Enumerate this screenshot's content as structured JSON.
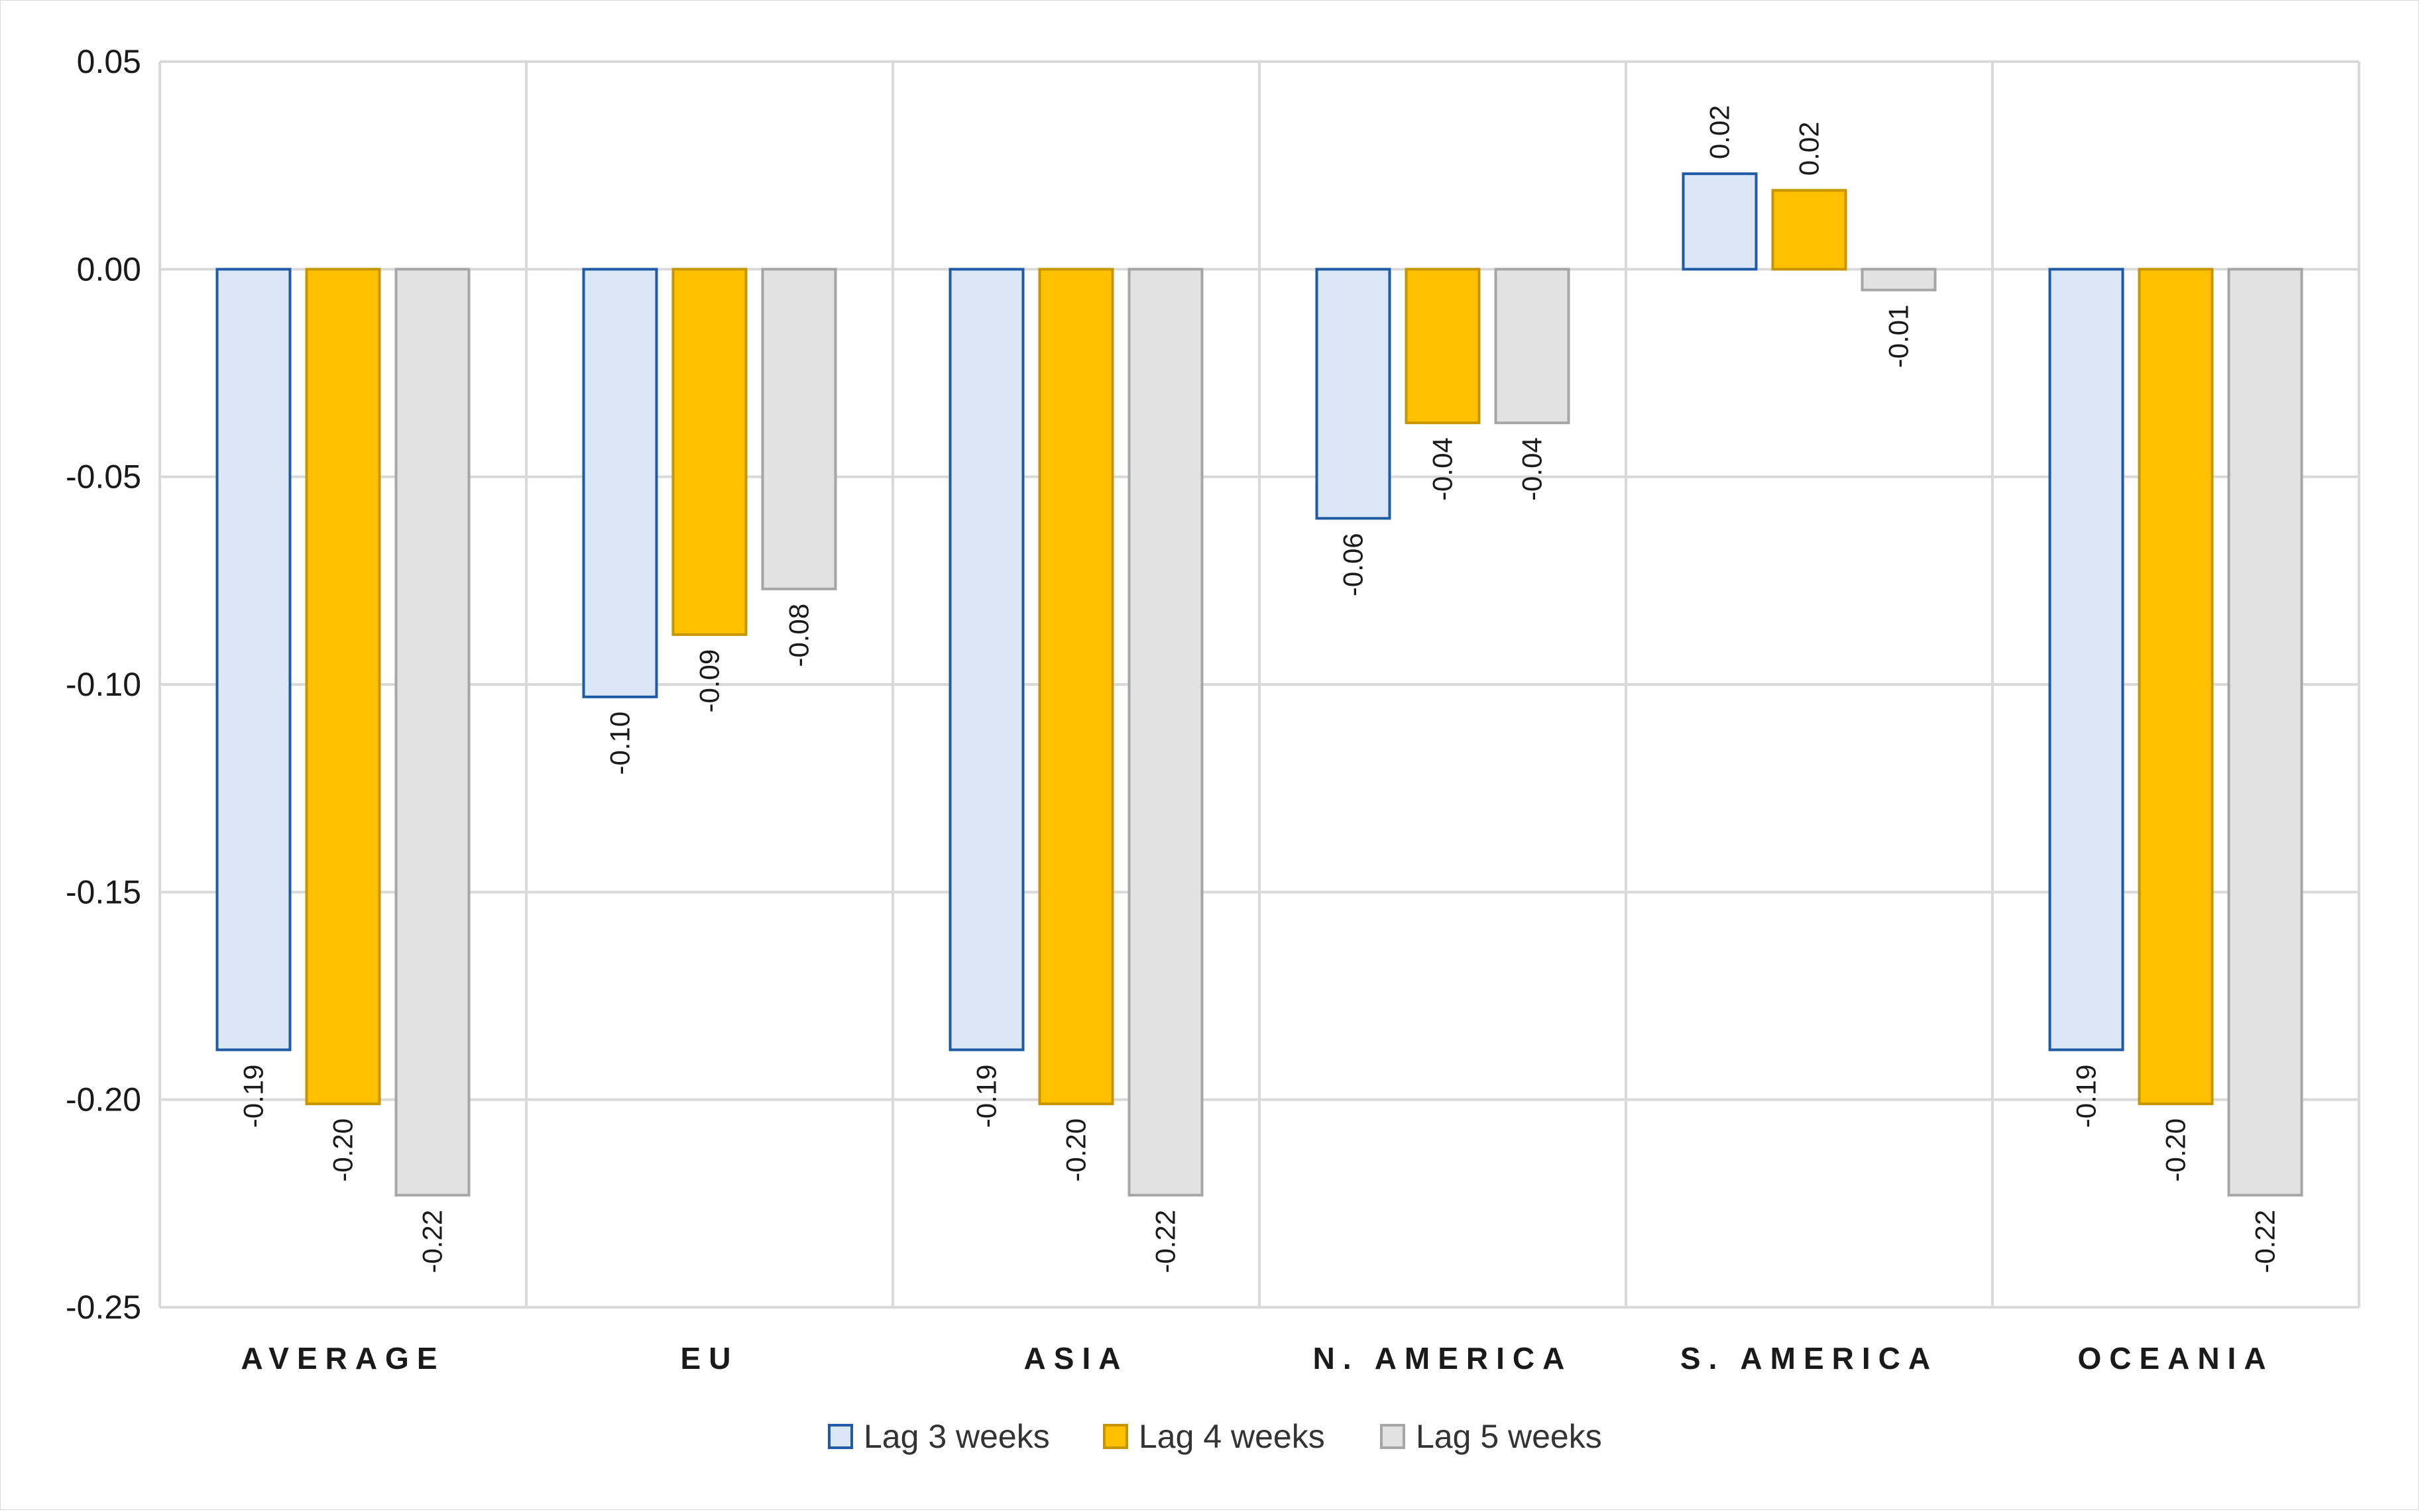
{
  "chart_data": {
    "type": "bar",
    "title": "",
    "xlabel": "",
    "ylabel": "",
    "categories": [
      "AVERAGE",
      "EU",
      "ASIA",
      "N. AMERICA",
      "S. AMERICA",
      "OCEANIA"
    ],
    "series": [
      {
        "name": "Lag 3 weeks",
        "values": [
          -0.188,
          -0.103,
          -0.188,
          -0.06,
          0.023,
          -0.188
        ],
        "labels": [
          "-0.19",
          "-0.10",
          "-0.19",
          "-0.06",
          "0.02",
          "-0.19"
        ],
        "fill": "#dae7f6",
        "stroke": "#1f5aa6"
      },
      {
        "name": "Lag 4 weeks",
        "values": [
          -0.201,
          -0.088,
          -0.201,
          -0.037,
          0.019,
          -0.201
        ],
        "labels": [
          "-0.20",
          "-0.09",
          "-0.20",
          "-0.04",
          "0.02",
          "-0.20"
        ],
        "fill": "#ffc000",
        "stroke": "#c79500"
      },
      {
        "name": "Lag 5 weeks",
        "values": [
          -0.223,
          -0.077,
          -0.223,
          -0.037,
          -0.005,
          -0.223
        ],
        "labels": [
          "-0.22",
          "-0.08",
          "-0.22",
          "-0.04",
          "-0.01",
          "-0.22"
        ],
        "fill": "#e2e2e2",
        "stroke": "#a6a6a6"
      }
    ],
    "ylim": [
      -0.25,
      0.05
    ],
    "yticks": [
      0.05,
      0.0,
      -0.05,
      -0.1,
      -0.15,
      -0.2,
      -0.25
    ],
    "ytick_labels": [
      "0.05",
      "0.00",
      "-0.05",
      "-0.10",
      "-0.15",
      "-0.20",
      "-0.25"
    ],
    "grid": true,
    "legend_position": "bottom-center"
  },
  "colors": {
    "grid": "#d9d9d9",
    "text": "#1a1a1a"
  }
}
